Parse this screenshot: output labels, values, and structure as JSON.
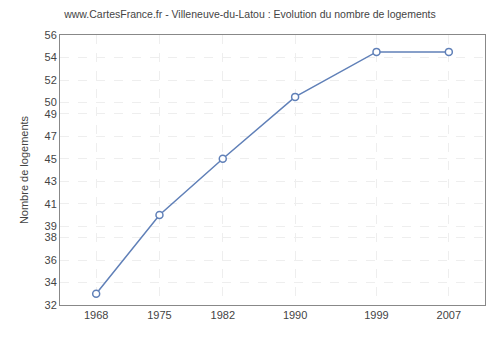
{
  "chart_data": {
    "type": "line",
    "title": "www.CartesFrance.fr - Villeneuve-du-Latou : Evolution du nombre de logements",
    "ylabel": "Nombre de logements",
    "x": [
      1968,
      1975,
      1982,
      1990,
      1999,
      2007
    ],
    "values": [
      33.0,
      40.0,
      45.0,
      50.5,
      54.5,
      54.5
    ],
    "color": "#6080b8",
    "marker": "circle",
    "xlim": [
      1964,
      2011
    ],
    "ylim": [
      32,
      56
    ],
    "xticks": [
      1968,
      1975,
      1982,
      1990,
      1999,
      2007
    ],
    "yticks": [
      56,
      54,
      52,
      50,
      49,
      47,
      45,
      43,
      41,
      39,
      38,
      36,
      34,
      32
    ],
    "grid": true
  }
}
